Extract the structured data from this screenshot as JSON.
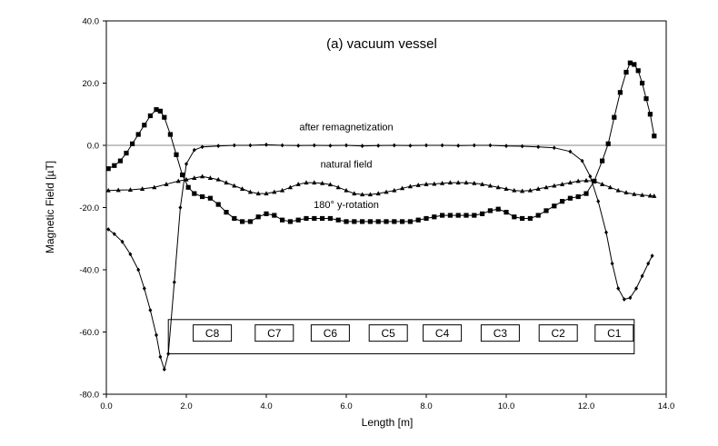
{
  "chart_data": {
    "type": "line",
    "title": "(a) vacuum vessel",
    "xlabel": "Length [m]",
    "ylabel": "Magnetic Field [µT]",
    "xlim": [
      0,
      14
    ],
    "ylim": [
      -80,
      40
    ],
    "x_ticks": [
      0,
      2,
      4,
      6,
      8,
      10,
      12,
      14
    ],
    "x_tick_labels": [
      "0.0",
      "2.0",
      "4.0",
      "6.0",
      "8.0",
      "10.0",
      "12.0",
      "14.0"
    ],
    "y_ticks": [
      -80,
      -60,
      -40,
      -20,
      0,
      20,
      40
    ],
    "y_tick_labels": [
      "-80.0",
      "-60.0",
      "-40.0",
      "-20.0",
      "0.0",
      "20.0",
      "40.0"
    ],
    "grid": false,
    "reference_line_y": 0,
    "annotations": [
      {
        "text": "after remagnetization",
        "x": 6.0,
        "y": 6.0
      },
      {
        "text": "natural field",
        "x": 6.0,
        "y": -6.0
      },
      {
        "text": "180° y-rotation",
        "x": 6.0,
        "y": -19.0
      }
    ],
    "coil_box": {
      "x_range": [
        1.55,
        13.2
      ],
      "y_range": [
        -67,
        -56
      ],
      "labels": [
        "C8",
        "C7",
        "C6",
        "C5",
        "C4",
        "C3",
        "C2",
        "C1"
      ],
      "label_x": [
        2.65,
        4.2,
        5.6,
        7.05,
        8.4,
        9.85,
        11.3,
        12.7
      ]
    },
    "series": [
      {
        "marker": "diamond",
        "x": [
          0.05,
          0.2,
          0.4,
          0.6,
          0.8,
          0.95,
          1.1,
          1.25,
          1.35,
          1.45,
          1.55,
          1.7,
          1.85,
          2.0,
          2.2,
          2.4,
          2.8,
          3.2,
          3.6,
          4.0,
          4.4,
          4.8,
          5.2,
          5.6,
          6.0,
          6.4,
          6.8,
          7.2,
          7.6,
          8.0,
          8.4,
          8.8,
          9.2,
          9.6,
          10.0,
          10.4,
          10.8,
          11.2,
          11.6,
          11.9,
          12.1,
          12.3,
          12.5,
          12.65,
          12.8,
          12.95,
          13.1,
          13.25,
          13.4,
          13.55,
          13.65
        ],
        "y": [
          -27,
          -28.5,
          -31,
          -35,
          -40,
          -46,
          -53,
          -61,
          -68,
          -72,
          -67,
          -44,
          -20,
          -6,
          -1.5,
          -0.5,
          -0.2,
          0,
          0,
          0.2,
          0,
          -0.1,
          0,
          -0.1,
          0,
          -0.2,
          -0.1,
          0,
          -0.1,
          0,
          0,
          -0.1,
          0,
          0,
          -0.2,
          -0.3,
          -0.5,
          -0.8,
          -2,
          -5,
          -10,
          -18,
          -28,
          -38,
          -46,
          -49.5,
          -49,
          -46,
          -42,
          -38,
          -35.5
        ]
      },
      {
        "marker": "square",
        "x": [
          0.05,
          0.2,
          0.35,
          0.5,
          0.65,
          0.8,
          0.95,
          1.1,
          1.25,
          1.35,
          1.45,
          1.6,
          1.75,
          1.9,
          2.05,
          2.2,
          2.4,
          2.6,
          2.8,
          3.0,
          3.2,
          3.4,
          3.6,
          3.8,
          4.0,
          4.2,
          4.4,
          4.6,
          4.8,
          5.0,
          5.2,
          5.4,
          5.6,
          5.8,
          6.0,
          6.2,
          6.4,
          6.6,
          6.8,
          7.0,
          7.2,
          7.4,
          7.6,
          7.8,
          8.0,
          8.2,
          8.4,
          8.6,
          8.8,
          9.0,
          9.2,
          9.4,
          9.6,
          9.8,
          10.0,
          10.2,
          10.4,
          10.6,
          10.8,
          11.0,
          11.2,
          11.4,
          11.6,
          11.8,
          12.0,
          12.2,
          12.4,
          12.55,
          12.7,
          12.85,
          13.0,
          13.1,
          13.2,
          13.3,
          13.4,
          13.5,
          13.6,
          13.7
        ],
        "y": [
          -7.5,
          -6.5,
          -5,
          -2.5,
          0.5,
          3.5,
          6.5,
          9.5,
          11.5,
          11,
          9,
          3.5,
          -3,
          -9.5,
          -13.5,
          -15.5,
          -16.5,
          -17,
          -19,
          -21.5,
          -23.5,
          -24.5,
          -24.5,
          -23,
          -22,
          -22.5,
          -24,
          -24.5,
          -24,
          -23.5,
          -23.5,
          -23.5,
          -23.5,
          -24,
          -24.5,
          -24.5,
          -24.5,
          -24.5,
          -24.5,
          -24.5,
          -24.5,
          -24.5,
          -24.5,
          -24,
          -23.5,
          -23,
          -22.5,
          -22.5,
          -22.5,
          -22.5,
          -22.5,
          -22,
          -21,
          -20.5,
          -21.5,
          -23,
          -23.5,
          -23.5,
          -22.5,
          -21,
          -19.5,
          -18,
          -17,
          -16.5,
          -15.5,
          -11.5,
          -5,
          0.5,
          9,
          17,
          23.5,
          26.5,
          26,
          24,
          20,
          15,
          10,
          3
        ]
      },
      {
        "marker": "triangle",
        "x": [
          0.05,
          0.3,
          0.6,
          0.9,
          1.2,
          1.5,
          1.8,
          2.0,
          2.2,
          2.4,
          2.6,
          2.8,
          3.0,
          3.2,
          3.4,
          3.6,
          3.8,
          4.0,
          4.2,
          4.4,
          4.6,
          4.8,
          5.0,
          5.2,
          5.4,
          5.6,
          5.8,
          6.0,
          6.2,
          6.4,
          6.6,
          6.8,
          7.0,
          7.2,
          7.4,
          7.6,
          7.8,
          8.0,
          8.2,
          8.4,
          8.6,
          8.8,
          9.0,
          9.2,
          9.4,
          9.6,
          9.8,
          10.0,
          10.2,
          10.4,
          10.6,
          10.8,
          11.0,
          11.2,
          11.4,
          11.6,
          11.8,
          12.0,
          12.2,
          12.4,
          12.6,
          12.8,
          13.0,
          13.2,
          13.4,
          13.6,
          13.7
        ],
        "y": [
          -14.5,
          -14.4,
          -14.3,
          -14,
          -13.5,
          -12.5,
          -11.5,
          -11,
          -10.5,
          -10,
          -10.5,
          -11,
          -12,
          -13,
          -14,
          -15,
          -15.5,
          -15.5,
          -15,
          -14.5,
          -13.5,
          -12.5,
          -12,
          -12,
          -12.2,
          -12.6,
          -13.5,
          -14.5,
          -15.5,
          -15.8,
          -15.8,
          -15.5,
          -15,
          -14.5,
          -13.8,
          -13.2,
          -12.8,
          -12.5,
          -12.4,
          -12.2,
          -12,
          -12,
          -12,
          -12.2,
          -12.5,
          -13,
          -13.5,
          -14,
          -14.5,
          -14.7,
          -14.5,
          -14,
          -13.5,
          -13,
          -12.5,
          -12,
          -11.5,
          -11.3,
          -11.5,
          -12.5,
          -13.5,
          -14.5,
          -15.2,
          -15.7,
          -16,
          -16.2,
          -16.3
        ]
      }
    ]
  }
}
